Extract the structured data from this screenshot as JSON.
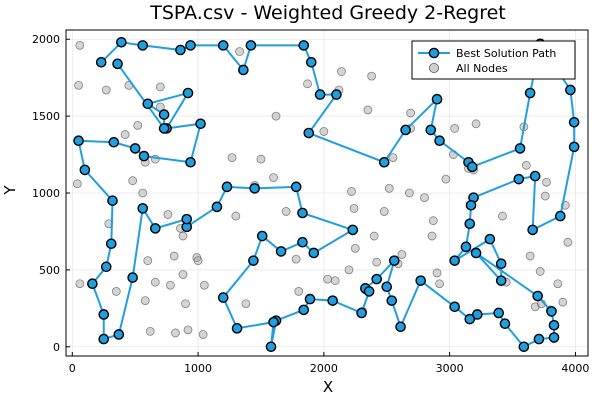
{
  "chart_data": {
    "type": "scatter",
    "title": "TSPA.csv - Weighted Greedy 2-Regret",
    "xlabel": "X",
    "ylabel": "Y",
    "xlim": [
      -50,
      4100
    ],
    "ylim": [
      -60,
      2060
    ],
    "xticks": [
      0,
      1000,
      2000,
      3000,
      4000
    ],
    "yticks": [
      0,
      500,
      1000,
      1500,
      2000
    ],
    "grid": true,
    "legend_position": "top-right",
    "series": [
      {
        "name": "Best Solution Path",
        "color": "#1f9fe0",
        "points": [
          [
            230,
            1850
          ],
          [
            390,
            1980
          ],
          [
            560,
            1960
          ],
          [
            860,
            1930
          ],
          [
            940,
            1960
          ],
          [
            1200,
            1960
          ],
          [
            1360,
            1800
          ],
          [
            1420,
            1960
          ],
          [
            1840,
            1960
          ],
          [
            1900,
            1850
          ],
          [
            1970,
            1640
          ],
          [
            2100,
            1640
          ],
          [
            1880,
            1390
          ],
          [
            2480,
            1200
          ],
          [
            2650,
            1410
          ],
          [
            2900,
            1610
          ],
          [
            2850,
            1410
          ],
          [
            2920,
            1340
          ],
          [
            3150,
            1200
          ],
          [
            3180,
            1170
          ],
          [
            3560,
            1290
          ],
          [
            3640,
            1650
          ],
          [
            3720,
            1970
          ],
          [
            3960,
            1670
          ],
          [
            3990,
            1460
          ],
          [
            3990,
            1300
          ],
          [
            3880,
            850
          ],
          [
            3660,
            760
          ],
          [
            3680,
            1110
          ],
          [
            3550,
            1090
          ],
          [
            3190,
            970
          ],
          [
            3170,
            920
          ],
          [
            3160,
            800
          ],
          [
            3130,
            650
          ],
          [
            3040,
            560
          ],
          [
            3320,
            700
          ],
          [
            3410,
            540
          ],
          [
            3410,
            430
          ],
          [
            3210,
            610
          ],
          [
            3700,
            330
          ],
          [
            3810,
            230
          ],
          [
            3830,
            140
          ],
          [
            3830,
            60
          ],
          [
            3710,
            50
          ],
          [
            3590,
            0
          ],
          [
            3440,
            150
          ],
          [
            3390,
            220
          ],
          [
            3220,
            210
          ],
          [
            3160,
            180
          ],
          [
            3040,
            260
          ],
          [
            2770,
            430
          ],
          [
            2610,
            130
          ],
          [
            2540,
            300
          ],
          [
            2500,
            390
          ],
          [
            2560,
            560
          ],
          [
            2420,
            440
          ],
          [
            2330,
            380
          ],
          [
            2360,
            360
          ],
          [
            2300,
            220
          ],
          [
            2070,
            300
          ],
          [
            1890,
            310
          ],
          [
            1840,
            240
          ],
          [
            1620,
            170
          ],
          [
            1580,
            0
          ],
          [
            1600,
            160
          ],
          [
            1310,
            120
          ],
          [
            1200,
            320
          ],
          [
            1440,
            560
          ],
          [
            1510,
            720
          ],
          [
            1660,
            620
          ],
          [
            1830,
            680
          ],
          [
            1920,
            610
          ],
          [
            2230,
            760
          ],
          [
            1830,
            870
          ],
          [
            1780,
            1040
          ],
          [
            1450,
            1030
          ],
          [
            1230,
            1040
          ],
          [
            1150,
            910
          ],
          [
            910,
            780
          ],
          [
            910,
            830
          ],
          [
            660,
            770
          ],
          [
            560,
            900
          ],
          [
            480,
            450
          ],
          [
            370,
            80
          ],
          [
            250,
            50
          ],
          [
            250,
            210
          ],
          [
            160,
            410
          ],
          [
            270,
            520
          ],
          [
            310,
            670
          ],
          [
            320,
            950
          ],
          [
            100,
            1150
          ],
          [
            50,
            1340
          ],
          [
            330,
            1330
          ],
          [
            500,
            1290
          ],
          [
            570,
            1240
          ],
          [
            940,
            1200
          ],
          [
            1020,
            1450
          ],
          [
            750,
            1420
          ],
          [
            920,
            1650
          ],
          [
            600,
            1580
          ],
          [
            730,
            1510
          ],
          [
            730,
            1420
          ],
          [
            360,
            1840
          ]
        ]
      },
      {
        "name": "All Nodes",
        "color": "#aaaaaa",
        "points": [
          [
            60,
            1960
          ],
          [
            50,
            1700
          ],
          [
            40,
            1060
          ],
          [
            60,
            410
          ],
          [
            270,
            1670
          ],
          [
            290,
            800
          ],
          [
            350,
            360
          ],
          [
            450,
            1700
          ],
          [
            420,
            1380
          ],
          [
            480,
            1080
          ],
          [
            520,
            1440
          ],
          [
            560,
            1000
          ],
          [
            580,
            1200
          ],
          [
            580,
            300
          ],
          [
            600,
            560
          ],
          [
            620,
            100
          ],
          [
            660,
            1220
          ],
          [
            660,
            420
          ],
          [
            700,
            1560
          ],
          [
            700,
            1690
          ],
          [
            760,
            860
          ],
          [
            810,
            590
          ],
          [
            780,
            400
          ],
          [
            860,
            770
          ],
          [
            880,
            720
          ],
          [
            880,
            470
          ],
          [
            820,
            90
          ],
          [
            900,
            280
          ],
          [
            920,
            110
          ],
          [
            990,
            580
          ],
          [
            1000,
            560
          ],
          [
            1040,
            80
          ],
          [
            1050,
            400
          ],
          [
            1270,
            1230
          ],
          [
            1300,
            850
          ],
          [
            1330,
            1920
          ],
          [
            1380,
            280
          ],
          [
            1450,
            1050
          ],
          [
            1500,
            1220
          ],
          [
            1600,
            1100
          ],
          [
            1620,
            1500
          ],
          [
            1700,
            880
          ],
          [
            1780,
            570
          ],
          [
            1800,
            360
          ],
          [
            1870,
            1710
          ],
          [
            2000,
            1400
          ],
          [
            2030,
            440
          ],
          [
            2090,
            430
          ],
          [
            2120,
            1670
          ],
          [
            2140,
            1790
          ],
          [
            2200,
            500
          ],
          [
            2220,
            1010
          ],
          [
            2240,
            900
          ],
          [
            2250,
            640
          ],
          [
            2310,
            230
          ],
          [
            2330,
            370
          ],
          [
            2350,
            1540
          ],
          [
            2380,
            1760
          ],
          [
            2400,
            720
          ],
          [
            2420,
            550
          ],
          [
            2480,
            880
          ],
          [
            2520,
            1030
          ],
          [
            2550,
            1230
          ],
          [
            2590,
            540
          ],
          [
            2620,
            600
          ],
          [
            2680,
            1000
          ],
          [
            2690,
            1420
          ],
          [
            2690,
            1520
          ],
          [
            2800,
            970
          ],
          [
            2860,
            720
          ],
          [
            2870,
            820
          ],
          [
            2900,
            480
          ],
          [
            2920,
            410
          ],
          [
            2970,
            1090
          ],
          [
            3030,
            1250
          ],
          [
            3040,
            1420
          ],
          [
            3150,
            1160
          ],
          [
            3150,
            1200
          ],
          [
            3190,
            1150
          ],
          [
            3210,
            1450
          ],
          [
            3420,
            850
          ],
          [
            3450,
            420
          ],
          [
            3590,
            1430
          ],
          [
            3610,
            1180
          ],
          [
            3620,
            1770
          ],
          [
            3640,
            590
          ],
          [
            3680,
            260
          ],
          [
            3720,
            490
          ],
          [
            3730,
            280
          ],
          [
            3760,
            980
          ],
          [
            3770,
            1070
          ],
          [
            3800,
            240
          ],
          [
            3860,
            410
          ],
          [
            3900,
            290
          ],
          [
            3920,
            920
          ],
          [
            3940,
            680
          ]
        ]
      }
    ]
  }
}
